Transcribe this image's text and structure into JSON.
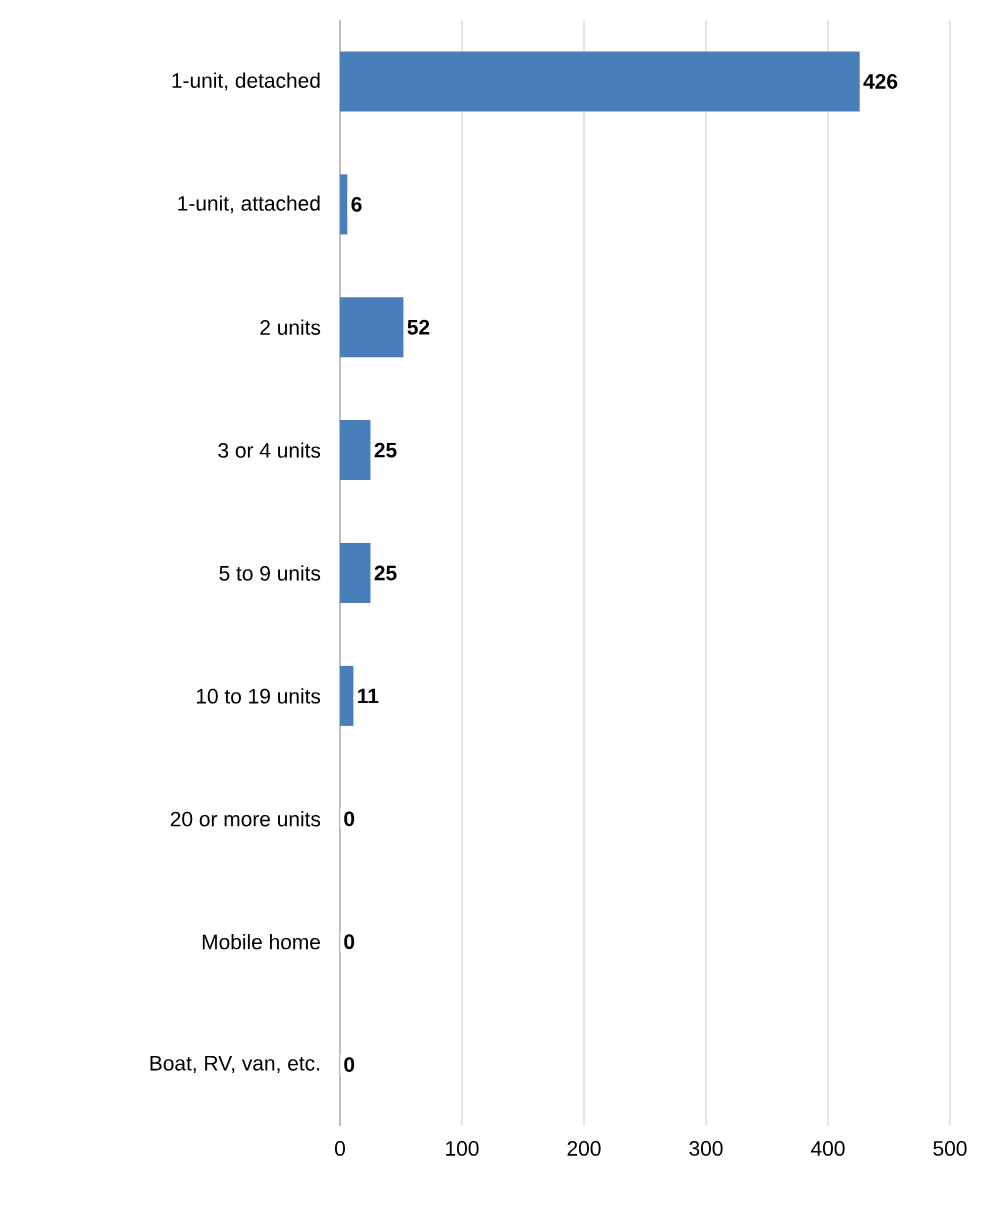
{
  "chart_data": {
    "type": "bar",
    "orientation": "horizontal",
    "categories": [
      "1-unit, detached",
      "1-unit, attached",
      "2 units",
      "3 or 4 units",
      "5 to 9 units",
      "10 to 19 units",
      "20 or more units",
      "Mobile home",
      "Boat, RV, van, etc."
    ],
    "values": [
      426,
      6,
      52,
      25,
      25,
      11,
      0,
      0,
      0
    ],
    "color": "#4a7ebb",
    "xlim": [
      0,
      500
    ],
    "xticks": [
      0,
      100,
      200,
      300,
      400,
      500
    ],
    "grid": "x",
    "data_labels": true
  }
}
